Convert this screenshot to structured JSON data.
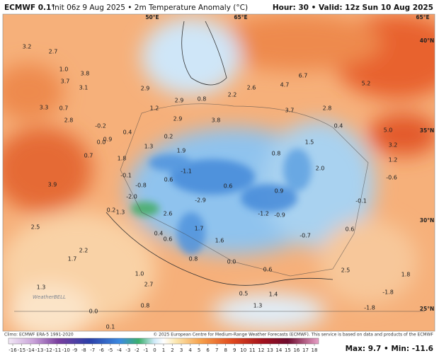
{
  "header": {
    "model": "ECMWF 0.1°",
    "init": "Init 06z 9 Aug 2025 • 2m Temperature Anomaly (°C)",
    "valid": "Hour: 30 • Valid: 12z Sun 10 Aug 2025"
  },
  "coordinate_labels": [
    "50°E",
    "65°E",
    "65°E",
    "40°N",
    "35°N",
    "30°N",
    "25°N"
  ],
  "map_labels": [
    "3.2",
    "2.7",
    "3.8",
    "3.1",
    "1.0",
    "3.7",
    "2.9",
    "1.2",
    "2.9",
    "0.8",
    "2.2",
    "2.6",
    "4.7",
    "6.7",
    "5.2",
    "3.3",
    "0.7",
    "2.8",
    "2.8",
    "3.7",
    "2.9",
    "3.8",
    "-0.2",
    "0.4",
    "0.9",
    "0.2",
    "1.3",
    "0.0",
    "1.9",
    "0.4",
    "1.5",
    "5.0",
    "3.2",
    "0.8",
    "1.8",
    "0.7",
    "1.2",
    "-0.1",
    "-1.1",
    "2.0",
    "-0.6",
    "3.9",
    "0.6",
    "0.6",
    "-0.8",
    "0.9",
    "-2.0",
    "-2.9",
    "-0.1",
    "0.2",
    "1.3",
    "2.6",
    "-1.2",
    "-0.9",
    "2.5",
    "1.7",
    "0.4",
    "-0.7",
    "0.6",
    "0.6",
    "1.6",
    "2.2",
    "1.7",
    "0.8",
    "0.0",
    "0.6",
    "2.5",
    "1.8",
    "1.0",
    "1.3",
    "2.7",
    "0.5",
    "1.4",
    "-1.8",
    "1.3",
    "0.8",
    "0.0",
    "-1.8",
    "0.1"
  ],
  "watermark": "WeatherBELL",
  "footer": {
    "climo": "Climo: ECMWF ERA-5 1991-2020",
    "copyright": "© 2025 European Centre for Medium-Range Weather Forecasts (ECMWF). This service is based on data and products of the ECMWF",
    "maxmin": "Max: 9.7 • Min: -11.6"
  },
  "colorbar": {
    "ticks": [
      -16,
      -15,
      -14,
      -13,
      -12,
      -11,
      -10,
      -9,
      -8,
      -7,
      -6,
      -5,
      -4,
      -3,
      -2,
      -1,
      0,
      1,
      2,
      3,
      4,
      5,
      6,
      7,
      8,
      9,
      10,
      11,
      12,
      13,
      14,
      15,
      16,
      17,
      18
    ]
  }
}
